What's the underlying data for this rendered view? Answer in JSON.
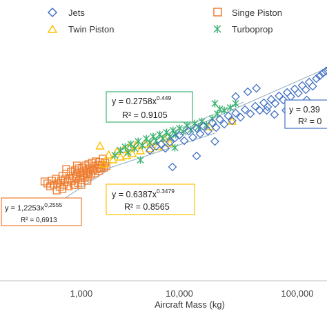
{
  "colors": {
    "jets": "#4472C4",
    "single_piston": "#ED7D31",
    "twin_piston": "#FFC000",
    "turboprop": "#3CB371",
    "axis": "#bfbfbf",
    "trend": "#9db8c9"
  },
  "chart_data": {
    "type": "scatter",
    "xscale": "log",
    "xlim": [
      300,
      200000
    ],
    "xlabel": "Aircraft Mass (kg)",
    "xticks": [
      {
        "value": 1000,
        "label": "1,000"
      },
      {
        "value": 10000,
        "label": "10,000"
      },
      {
        "value": 100000,
        "label": "100,000"
      }
    ],
    "legend_position": "top",
    "legend": [
      {
        "key": "jets",
        "label": "Jets",
        "marker": "diamond"
      },
      {
        "key": "single_piston",
        "label": "Singe Piston",
        "marker": "square"
      },
      {
        "key": "twin_piston",
        "label": "Twin Piston",
        "marker": "triangle"
      },
      {
        "key": "turboprop",
        "label": "Turboprop",
        "marker": "cross"
      }
    ],
    "equations": [
      {
        "key": "turboprop",
        "base": "y = 0.2758x",
        "exponent": "0.449",
        "r2": "R² = 0.9105"
      },
      {
        "key": "twin_piston",
        "base": "y = 0.6387x",
        "exponent": "0.3479",
        "r2": "R² = 0.8565"
      },
      {
        "key": "single_piston",
        "base": "y = 1,2253x",
        "exponent": "0,2555",
        "r2": "R² = 0,6913"
      },
      {
        "key": "jets",
        "base": "y = 0.39",
        "exponent": "",
        "r2": "R² = 0"
      }
    ],
    "series": [
      {
        "key": "single_piston",
        "name": "Singe Piston",
        "marker": "square",
        "points": [
          [
            420,
            263
          ],
          [
            450,
            266
          ],
          [
            480,
            270
          ],
          [
            500,
            262
          ],
          [
            520,
            268
          ],
          [
            550,
            259
          ],
          [
            570,
            266
          ],
          [
            600,
            271
          ],
          [
            620,
            262
          ],
          [
            640,
            255
          ],
          [
            660,
            268
          ],
          [
            680,
            260
          ],
          [
            700,
            252
          ],
          [
            720,
            264
          ],
          [
            740,
            270
          ],
          [
            760,
            258
          ],
          [
            780,
            249
          ],
          [
            800,
            262
          ],
          [
            820,
            255
          ],
          [
            840,
            268
          ],
          [
            860,
            247
          ],
          [
            880,
            259
          ],
          [
            900,
            252
          ],
          [
            920,
            265
          ],
          [
            940,
            244
          ],
          [
            960,
            256
          ],
          [
            980,
            250
          ],
          [
            1000,
            261
          ],
          [
            1020,
            243
          ],
          [
            1040,
            254
          ],
          [
            1060,
            248
          ],
          [
            1080,
            258
          ],
          [
            1100,
            240
          ],
          [
            1120,
            251
          ],
          [
            1140,
            246
          ],
          [
            1160,
            256
          ],
          [
            1180,
            238
          ],
          [
            1200,
            249
          ],
          [
            1220,
            244
          ],
          [
            1250,
            253
          ],
          [
            1280,
            236
          ],
          [
            1310,
            247
          ],
          [
            1340,
            241
          ],
          [
            1370,
            251
          ],
          [
            1400,
            234
          ],
          [
            1430,
            245
          ],
          [
            1460,
            239
          ],
          [
            1500,
            248
          ],
          [
            1540,
            235
          ],
          [
            1580,
            244
          ],
          [
            1620,
            239
          ],
          [
            1660,
            230
          ],
          [
            1700,
            243
          ],
          [
            1750,
            236
          ],
          [
            1800,
            241
          ],
          [
            560,
            276
          ],
          [
            640,
            274
          ],
          [
            860,
            268
          ],
          [
            1000,
            268
          ],
          [
            1150,
            262
          ],
          [
            700,
            245
          ],
          [
            900,
            240
          ]
        ]
      },
      {
        "key": "twin_piston",
        "name": "Twin Piston",
        "marker": "triangle",
        "points": [
          [
            1550,
            212
          ],
          [
            1700,
            238
          ],
          [
            1900,
            225
          ],
          [
            2100,
            232
          ],
          [
            2300,
            220
          ],
          [
            2500,
            228
          ],
          [
            2700,
            217
          ],
          [
            2900,
            226
          ],
          [
            3100,
            214
          ],
          [
            3300,
            223
          ],
          [
            3600,
            211
          ],
          [
            4000,
            219
          ],
          [
            4500,
            209
          ],
          [
            5000,
            216
          ],
          [
            5500,
            205
          ],
          [
            6000,
            213
          ],
          [
            7000,
            201
          ],
          [
            8000,
            208
          ],
          [
            18000,
            184
          ],
          [
            28000,
            176
          ]
        ]
      },
      {
        "key": "turboprop",
        "name": "Turboprop",
        "marker": "cross",
        "points": [
          [
            2200,
            225
          ],
          [
            2500,
            218
          ],
          [
            2800,
            213
          ],
          [
            3000,
            221
          ],
          [
            3200,
            209
          ],
          [
            3500,
            215
          ],
          [
            3800,
            205
          ],
          [
            4200,
            211
          ],
          [
            4600,
            201
          ],
          [
            5000,
            207
          ],
          [
            5400,
            198
          ],
          [
            5800,
            204
          ],
          [
            6300,
            195
          ],
          [
            6800,
            201
          ],
          [
            7400,
            192
          ],
          [
            8000,
            198
          ],
          [
            8600,
            189
          ],
          [
            9200,
            195
          ],
          [
            10000,
            186
          ],
          [
            10800,
            191
          ],
          [
            11600,
            182
          ],
          [
            12500,
            188
          ],
          [
            13500,
            179
          ],
          [
            14500,
            184
          ],
          [
            15500,
            176
          ],
          [
            17000,
            181
          ],
          [
            19000,
            172
          ],
          [
            21000,
            165
          ],
          [
            24000,
            160
          ],
          [
            27000,
            156
          ],
          [
            30000,
            150
          ],
          [
            20000,
            150
          ],
          [
            22000,
            158
          ],
          [
            4000,
            232
          ],
          [
            9000,
            214
          ]
        ]
      },
      {
        "key": "jets",
        "name": "Jets",
        "marker": "diamond",
        "points": [
          [
            5000,
            218
          ],
          [
            5800,
            212
          ],
          [
            6500,
            209
          ],
          [
            7200,
            215
          ],
          [
            8000,
            206
          ],
          [
            9000,
            200
          ],
          [
            10000,
            196
          ],
          [
            11000,
            204
          ],
          [
            12000,
            190
          ],
          [
            13000,
            199
          ],
          [
            14000,
            186
          ],
          [
            15000,
            194
          ],
          [
            16000,
            183
          ],
          [
            17500,
            190
          ],
          [
            19000,
            178
          ],
          [
            20500,
            185
          ],
          [
            22000,
            173
          ],
          [
            24000,
            180
          ],
          [
            26000,
            168
          ],
          [
            28000,
            175
          ],
          [
            30000,
            164
          ],
          [
            33000,
            170
          ],
          [
            36000,
            159
          ],
          [
            40000,
            165
          ],
          [
            44000,
            154
          ],
          [
            48000,
            160
          ],
          [
            52000,
            149
          ],
          [
            56000,
            155
          ],
          [
            60000,
            144
          ],
          [
            65000,
            150
          ],
          [
            70000,
            139
          ],
          [
            76000,
            145
          ],
          [
            82000,
            134
          ],
          [
            88000,
            140
          ],
          [
            95000,
            129
          ],
          [
            102000,
            135
          ],
          [
            110000,
            124
          ],
          [
            118000,
            130
          ],
          [
            126000,
            119
          ],
          [
            135000,
            125
          ],
          [
            145000,
            114
          ],
          [
            155000,
            110
          ],
          [
            165000,
            106
          ],
          [
            175000,
            103
          ],
          [
            185000,
            100
          ],
          [
            8500,
            242
          ],
          [
            14000,
            226
          ],
          [
            20000,
            205
          ],
          [
            30000,
            140
          ],
          [
            38000,
            133
          ],
          [
            45000,
            128
          ],
          [
            55000,
            160
          ],
          [
            64000,
            166
          ],
          [
            80000,
            160
          ],
          [
            120000,
            145
          ]
        ]
      }
    ],
    "trendlines": [
      {
        "key": "single_piston",
        "x": [
          300,
          1800
        ],
        "y": [
          320,
          248
        ]
      },
      {
        "key": "twin_piston",
        "x": [
          1400,
          20000
        ],
        "y": [
          250,
          193
        ]
      },
      {
        "key": "turboprop",
        "x": [
          2000,
          35000
        ],
        "y": [
          228,
          148
        ]
      },
      {
        "key": "jets",
        "x": [
          5000,
          200000
        ],
        "y": [
          212,
          95
        ]
      }
    ]
  }
}
